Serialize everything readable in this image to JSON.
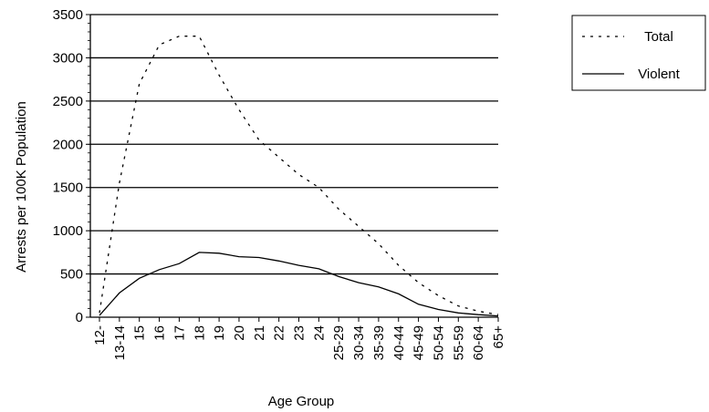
{
  "chart_data": {
    "type": "line",
    "title": "",
    "xlabel": "Age Group",
    "ylabel": "Arrests per 100K Population",
    "ylim": [
      0,
      3500
    ],
    "yticks": [
      0,
      500,
      1000,
      1500,
      2000,
      2500,
      3000,
      3500
    ],
    "grid": "horizontal",
    "legend_position": "top-right",
    "categories": [
      "12-",
      "13-14",
      "15",
      "16",
      "17",
      "18",
      "19",
      "20",
      "21",
      "22",
      "23",
      "24",
      "25-29",
      "30-34",
      "35-39",
      "40-44",
      "45-49",
      "50-54",
      "55-59",
      "60-64",
      "65+"
    ],
    "series": [
      {
        "name": "Total",
        "style": "dashed",
        "values": [
          50,
          1550,
          2700,
          3150,
          3250,
          3250,
          2800,
          2400,
          2050,
          1850,
          1650,
          1500,
          1250,
          1050,
          850,
          600,
          400,
          250,
          130,
          70,
          30
        ]
      },
      {
        "name": "Violent",
        "style": "solid",
        "values": [
          20,
          280,
          450,
          550,
          620,
          750,
          740,
          700,
          690,
          650,
          600,
          560,
          470,
          400,
          350,
          270,
          150,
          90,
          50,
          30,
          15
        ]
      }
    ]
  }
}
